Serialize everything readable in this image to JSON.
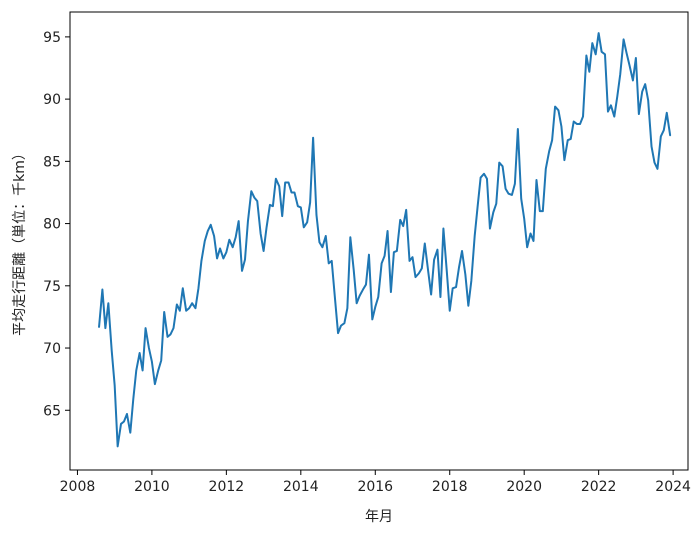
{
  "chart_data": {
    "type": "line",
    "title": "",
    "xlabel": "年月",
    "ylabel": "平均走行距離（単位：千km）",
    "xlim": [
      2007.8,
      2024.4
    ],
    "ylim": [
      60.2,
      97.0
    ],
    "grid": false,
    "legend": "none",
    "x_ticks": [
      2008,
      2010,
      2012,
      2014,
      2016,
      2018,
      2020,
      2022,
      2024
    ],
    "y_ticks": [
      65,
      70,
      75,
      80,
      85,
      90,
      95
    ],
    "x_tick_labels": [
      "2008",
      "2010",
      "2012",
      "2014",
      "2016",
      "2018",
      "2020",
      "2022",
      "2024"
    ],
    "y_tick_labels": [
      "65",
      "70",
      "75",
      "80",
      "85",
      "90",
      "95"
    ],
    "line_color": "#1f77b4",
    "series": [
      {
        "x": [
          2008.58,
          2008.67,
          2008.75,
          2008.83,
          2008.92,
          2009.0,
          2009.08,
          2009.17,
          2009.25,
          2009.33,
          2009.42,
          2009.5,
          2009.58,
          2009.67,
          2009.75,
          2009.83,
          2009.92,
          2010.0,
          2010.08,
          2010.17,
          2010.25,
          2010.33,
          2010.42,
          2010.5,
          2010.58,
          2010.67,
          2010.75,
          2010.83,
          2010.92,
          2011.0,
          2011.08,
          2011.17,
          2011.25,
          2011.33,
          2011.42,
          2011.5,
          2011.58,
          2011.67,
          2011.75,
          2011.83,
          2011.92,
          2012.0,
          2012.08,
          2012.17,
          2012.25,
          2012.33,
          2012.42,
          2012.5,
          2012.58,
          2012.67,
          2012.75,
          2012.83,
          2012.92,
          2013.0,
          2013.08,
          2013.17,
          2013.25,
          2013.33,
          2013.42,
          2013.5,
          2013.58,
          2013.67,
          2013.75,
          2013.83,
          2013.92,
          2014.0,
          2014.08,
          2014.17,
          2014.25,
          2014.33,
          2014.42,
          2014.5,
          2014.58,
          2014.67,
          2014.75,
          2014.83,
          2014.92,
          2015.0,
          2015.08,
          2015.17,
          2015.25,
          2015.33,
          2015.42,
          2015.5,
          2015.58,
          2015.67,
          2015.75,
          2015.83,
          2015.92,
          2016.0,
          2016.08,
          2016.17,
          2016.25,
          2016.33,
          2016.42,
          2016.5,
          2016.58,
          2016.67,
          2016.75,
          2016.83,
          2016.92,
          2017.0,
          2017.08,
          2017.17,
          2017.25,
          2017.33,
          2017.42,
          2017.5,
          2017.58,
          2017.67,
          2017.75,
          2017.83,
          2017.92,
          2018.0,
          2018.08,
          2018.17,
          2018.25,
          2018.33,
          2018.42,
          2018.5,
          2018.58,
          2018.67,
          2018.75,
          2018.83,
          2018.92,
          2019.0,
          2019.08,
          2019.17,
          2019.25,
          2019.33,
          2019.42,
          2019.5,
          2019.58,
          2019.67,
          2019.75,
          2019.83,
          2019.92,
          2020.0,
          2020.08,
          2020.17,
          2020.25,
          2020.33,
          2020.42,
          2020.5,
          2020.58,
          2020.67,
          2020.75,
          2020.83,
          2020.92,
          2021.0,
          2021.08,
          2021.17,
          2021.25,
          2021.33,
          2021.42,
          2021.5,
          2021.58,
          2021.67,
          2021.75,
          2021.83,
          2021.92,
          2022.0,
          2022.08,
          2022.17,
          2022.25,
          2022.33,
          2022.42,
          2022.5,
          2022.58,
          2022.67,
          2022.75,
          2022.83,
          2022.92,
          2023.0,
          2023.08,
          2023.17,
          2023.25,
          2023.33,
          2023.42,
          2023.5,
          2023.58,
          2023.67,
          2023.75,
          2023.83,
          2023.92
        ],
        "values": [
          71.7,
          74.7,
          71.6,
          73.6,
          69.8,
          67.0,
          62.1,
          63.9,
          64.1,
          64.7,
          63.2,
          65.9,
          68.2,
          69.6,
          68.2,
          71.6,
          70.0,
          68.9,
          67.1,
          68.2,
          69.0,
          72.9,
          70.9,
          71.1,
          71.6,
          73.5,
          73.0,
          74.8,
          73.0,
          73.2,
          73.6,
          73.2,
          74.8,
          77.0,
          78.6,
          79.4,
          79.9,
          79.0,
          77.2,
          78.0,
          77.2,
          77.7,
          78.7,
          78.1,
          78.9,
          80.2,
          76.2,
          77.1,
          80.2,
          82.6,
          82.1,
          81.8,
          79.2,
          77.8,
          79.7,
          81.5,
          81.4,
          83.6,
          83.0,
          80.6,
          83.3,
          83.3,
          82.5,
          82.5,
          81.4,
          81.3,
          79.7,
          80.1,
          81.7,
          86.9,
          80.7,
          78.5,
          78.1,
          79.0,
          76.8,
          77.0,
          73.9,
          71.2,
          71.8,
          72.0,
          73.2,
          78.9,
          76.3,
          73.6,
          74.2,
          74.7,
          75.1,
          77.5,
          72.3,
          73.3,
          74.1,
          76.8,
          77.4,
          79.4,
          74.5,
          77.7,
          77.8,
          80.3,
          79.8,
          81.1,
          77.0,
          77.3,
          75.7,
          76.0,
          76.4,
          78.4,
          76.2,
          74.3,
          77.1,
          77.9,
          74.1,
          79.6,
          76.2,
          73.0,
          74.8,
          74.9,
          76.5,
          77.8,
          75.9,
          73.4,
          75.4,
          79.0,
          81.4,
          83.7,
          84.0,
          83.6,
          79.6,
          80.9,
          81.6,
          84.9,
          84.6,
          82.8,
          82.4,
          82.3,
          83.2,
          87.6,
          82.0,
          80.4,
          78.1,
          79.2,
          78.6,
          83.5,
          81.0,
          81.0,
          84.4,
          85.8,
          86.7,
          89.4,
          89.1,
          87.8,
          85.1,
          86.7,
          86.8,
          88.2,
          88.0,
          88.0,
          88.6,
          93.5,
          92.2,
          94.5,
          93.6,
          95.3,
          93.8,
          93.6,
          89.0,
          89.5,
          88.6,
          90.2,
          92.0,
          94.8,
          93.7,
          92.7,
          91.5,
          93.3,
          88.8,
          90.6,
          91.2,
          89.9,
          86.2,
          84.9,
          84.4,
          87.0,
          87.5,
          88.9,
          87.1
        ]
      }
    ]
  }
}
